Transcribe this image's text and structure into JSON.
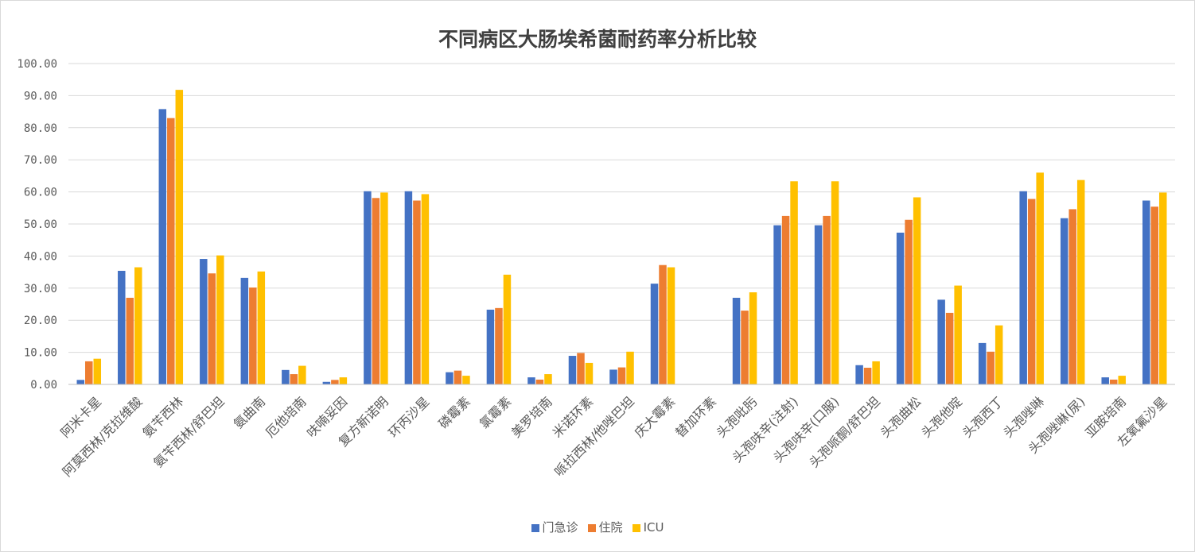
{
  "chart_data": {
    "type": "bar",
    "title": "不同病区大肠埃希菌耐药率分析比较",
    "xlabel": "",
    "ylabel": "",
    "ylim": [
      0,
      100
    ],
    "y_ticks": [
      "0.00",
      "10.00",
      "20.00",
      "30.00",
      "40.00",
      "50.00",
      "60.00",
      "70.00",
      "80.00",
      "90.00",
      "100.00"
    ],
    "grid": true,
    "legend_position": "bottom",
    "categories": [
      "阿米卡星",
      "阿莫西林/克拉维酸",
      "氨苄西林",
      "氨苄西林/舒巴坦",
      "氨曲南",
      "厄他培南",
      "呋喃妥因",
      "复方新诺明",
      "环丙沙星",
      "磷霉素",
      "氯霉素",
      "美罗培南",
      "米诺环素",
      "哌拉西林/他唑巴坦",
      "庆大霉素",
      "替加环素",
      "头孢吡肟",
      "头孢呋辛(注射)",
      "头孢呋辛(口服)",
      "头孢哌酮/舒巴坦",
      "头孢曲松",
      "头孢他啶",
      "头孢西丁",
      "头孢唑啉",
      "头孢唑啉(尿)",
      "亚胺培南",
      "左氧氟沙星"
    ],
    "series": [
      {
        "name": "门急诊",
        "color": "#4472c4",
        "values": [
          1.4,
          35.4,
          85.8,
          39.1,
          33.2,
          4.5,
          0.8,
          60.2,
          60.2,
          3.8,
          23.3,
          2.2,
          8.9,
          4.6,
          31.4,
          0,
          27.0,
          49.6,
          49.6,
          6.0,
          47.3,
          26.4,
          12.9,
          60.2,
          51.8,
          2.2,
          57.3
        ]
      },
      {
        "name": "住院",
        "color": "#ed7d31",
        "values": [
          7.2,
          27.0,
          83.0,
          34.6,
          30.2,
          3.2,
          1.4,
          58.1,
          57.3,
          4.3,
          23.8,
          1.5,
          9.8,
          5.3,
          37.2,
          0,
          23.0,
          52.5,
          52.5,
          5.2,
          51.3,
          22.3,
          10.2,
          57.8,
          54.6,
          1.5,
          55.4
        ]
      },
      {
        "name": "ICU",
        "color": "#ffc000",
        "values": [
          8.0,
          36.5,
          91.8,
          40.2,
          35.2,
          5.8,
          2.2,
          59.8,
          59.3,
          2.7,
          34.2,
          3.2,
          6.7,
          10.2,
          36.5,
          0,
          28.7,
          63.3,
          63.3,
          7.2,
          58.3,
          30.8,
          18.4,
          66.0,
          63.7,
          2.7,
          59.8
        ]
      }
    ]
  }
}
